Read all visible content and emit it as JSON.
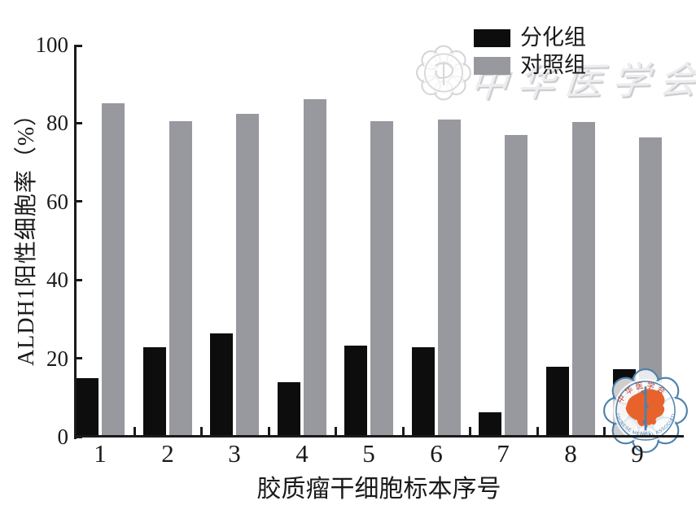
{
  "chart_data": {
    "type": "bar",
    "title": "",
    "categories": [
      "1",
      "2",
      "3",
      "4",
      "5",
      "6",
      "7",
      "8",
      "9"
    ],
    "series": [
      {
        "name": "分化组",
        "color": "#0d0d0d",
        "values": [
          15,
          22.8,
          26.4,
          13.8,
          23.2,
          22.8,
          6.2,
          17.8,
          17.2
        ]
      },
      {
        "name": "对照组",
        "color": "#98989f",
        "values": [
          85,
          80.5,
          82.3,
          86,
          80.6,
          81,
          77,
          80.2,
          76.3
        ]
      }
    ],
    "xlabel": "胶质瘤干细胞标本序号",
    "ylabel": "ALDH1阳性细胞率（%）",
    "ylim": [
      0,
      100
    ],
    "yticks": [
      0,
      20,
      40,
      60,
      80,
      100
    ],
    "grid": false,
    "legend_position": "top-right",
    "axis_color": "#1a1a1a"
  },
  "legend": {
    "items": [
      {
        "label": "分化组",
        "color": "#0d0d0d"
      },
      {
        "label": "对照组",
        "color": "#98989f"
      }
    ]
  },
  "watermark": {
    "script_text": "中华医学会",
    "seal_name": "chinese-medical-association-watermark-seal"
  },
  "logo": {
    "name": "chinese-medical-association-seal",
    "top_text": "中华医学会",
    "bottom_text": "CHINESE MEDICAL ASSOCIATION",
    "year": "1915",
    "ring_color": "#4c80ac",
    "map_color": "#e8632c",
    "top_text_color": "#c0392b"
  }
}
